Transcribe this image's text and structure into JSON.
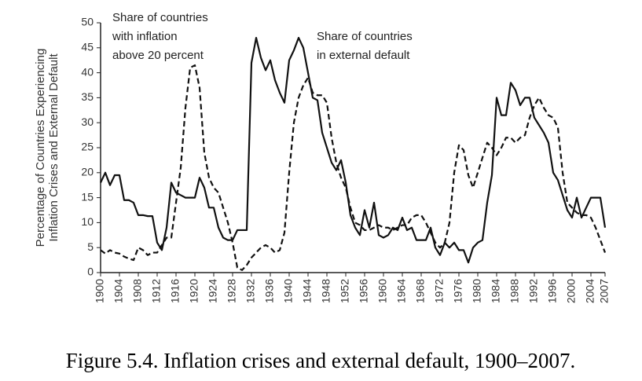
{
  "chart_data": {
    "type": "line",
    "y_label": [
      "Percentage of Countries Experiencing",
      "Inflation Crises and External Default"
    ],
    "caption": "Figure 5.4. Inflation crises and external default, 1900–2007.",
    "annotations": [
      {
        "lines": [
          "Share of countries",
          "with inflation",
          "above 20 percent"
        ]
      },
      {
        "lines": [
          "Share of countries",
          "in external default"
        ]
      }
    ],
    "xlim": [
      1900,
      2007
    ],
    "xticks": [
      1900,
      1904,
      1908,
      1912,
      1916,
      1920,
      1924,
      1928,
      1932,
      1936,
      1940,
      1944,
      1948,
      1952,
      1956,
      1960,
      1964,
      1968,
      1972,
      1976,
      1980,
      1984,
      1988,
      1992,
      1996,
      2000,
      2004,
      2007
    ],
    "ylim": [
      0,
      50
    ],
    "yticks": [
      0,
      5,
      10,
      15,
      20,
      25,
      30,
      35,
      40,
      45,
      50
    ],
    "x": [
      1900,
      1901,
      1902,
      1903,
      1904,
      1905,
      1906,
      1907,
      1908,
      1909,
      1910,
      1911,
      1912,
      1913,
      1914,
      1915,
      1916,
      1917,
      1918,
      1919,
      1920,
      1921,
      1922,
      1923,
      1924,
      1925,
      1926,
      1927,
      1928,
      1929,
      1930,
      1931,
      1932,
      1933,
      1934,
      1935,
      1936,
      1937,
      1938,
      1939,
      1940,
      1941,
      1942,
      1943,
      1944,
      1945,
      1946,
      1947,
      1948,
      1949,
      1950,
      1951,
      1952,
      1953,
      1954,
      1955,
      1956,
      1957,
      1958,
      1959,
      1960,
      1961,
      1962,
      1963,
      1964,
      1965,
      1966,
      1967,
      1968,
      1969,
      1970,
      1971,
      1972,
      1973,
      1974,
      1975,
      1976,
      1977,
      1978,
      1979,
      1980,
      1981,
      1982,
      1983,
      1984,
      1985,
      1986,
      1987,
      1988,
      1989,
      1990,
      1991,
      1992,
      1993,
      1994,
      1995,
      1996,
      1997,
      1998,
      1999,
      2000,
      2001,
      2002,
      2003,
      2004,
      2005,
      2006,
      2007
    ],
    "series": [
      {
        "color": "#111",
        "dashed": false,
        "values": [
          18,
          20,
          17.5,
          19.5,
          19.5,
          14.5,
          14.5,
          14,
          11.5,
          11.5,
          11.3,
          11.3,
          6,
          4.5,
          9,
          18,
          16,
          15.5,
          15,
          15,
          15,
          19,
          17,
          13,
          13,
          9,
          7,
          6.5,
          6.5,
          8.5,
          8.5,
          8.5,
          42,
          47,
          43,
          40.5,
          42.5,
          38.5,
          36,
          34,
          42.5,
          44.5,
          47,
          45,
          40,
          35,
          34.5,
          28,
          25,
          22,
          20.5,
          22.5,
          18,
          11.5,
          9,
          7.5,
          12.5,
          9,
          14,
          7.5,
          7,
          7.5,
          9,
          8.5,
          11,
          8.5,
          9,
          6.5,
          6.5,
          6.5,
          9,
          5,
          3.5,
          6,
          5,
          6,
          4.5,
          4.5,
          2,
          5,
          6,
          6.5,
          14,
          19.5,
          35,
          31.5,
          31.5,
          38,
          36.5,
          33.5,
          35,
          35,
          31,
          29.5,
          28,
          26,
          20,
          18.5,
          15.5,
          12.5,
          11,
          15,
          11,
          13,
          15,
          15,
          15,
          9
        ]
      },
      {
        "color": "#111",
        "dashed": true,
        "values": [
          4.5,
          3.8,
          4.5,
          4,
          3.8,
          3.2,
          2.8,
          2.5,
          5,
          4.5,
          3.5,
          4,
          4,
          5.5,
          7,
          7,
          14,
          21,
          33,
          41,
          41.5,
          37,
          24,
          19,
          17,
          16,
          13,
          10,
          6,
          1,
          0.5,
          1.5,
          3,
          4,
          5,
          5.5,
          5,
          4,
          4.5,
          8,
          20,
          30,
          35,
          37.5,
          39,
          36,
          35.5,
          35.5,
          34,
          27,
          22,
          19,
          17,
          13,
          10,
          9.5,
          8.5,
          8.5,
          9,
          9.5,
          9,
          9,
          8.5,
          9,
          9.5,
          9.5,
          11,
          11.5,
          11.5,
          10,
          8,
          6,
          5,
          6,
          10,
          20,
          25.5,
          24.5,
          19.5,
          17,
          20,
          23,
          26,
          25,
          23.5,
          25,
          27,
          27,
          26,
          27,
          27.5,
          31,
          33.5,
          35,
          33,
          31.5,
          31,
          29,
          20,
          14,
          13,
          12,
          11.5,
          11.5,
          11,
          9,
          6.5,
          4
        ]
      }
    ]
  }
}
